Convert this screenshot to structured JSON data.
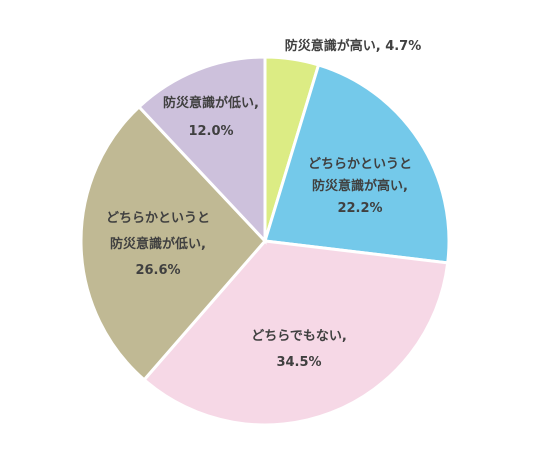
{
  "chart_data": {
    "type": "pie",
    "title": "",
    "start": "top",
    "direction": "clockwise",
    "slices": [
      {
        "label_lines": [
          "防災意識が高い, 4.7%"
        ],
        "value": 4.7,
        "color": "#dcec84"
      },
      {
        "label_lines": [
          "どちらかというと",
          "防災意識が高い,",
          "22.2%"
        ],
        "value": 22.2,
        "color": "#74c9ea"
      },
      {
        "label_lines": [
          "どちらでもない,",
          "34.5%"
        ],
        "value": 34.5,
        "color": "#f6d8e6"
      },
      {
        "label_lines": [
          "どちらかというと",
          "防災意識が低い,",
          "26.6%"
        ],
        "value": 26.6,
        "color": "#c0b994"
      },
      {
        "label_lines": [
          "防災意識が低い,",
          "12.0%"
        ],
        "value": 12.0,
        "color": "#cdc1dc"
      }
    ]
  }
}
